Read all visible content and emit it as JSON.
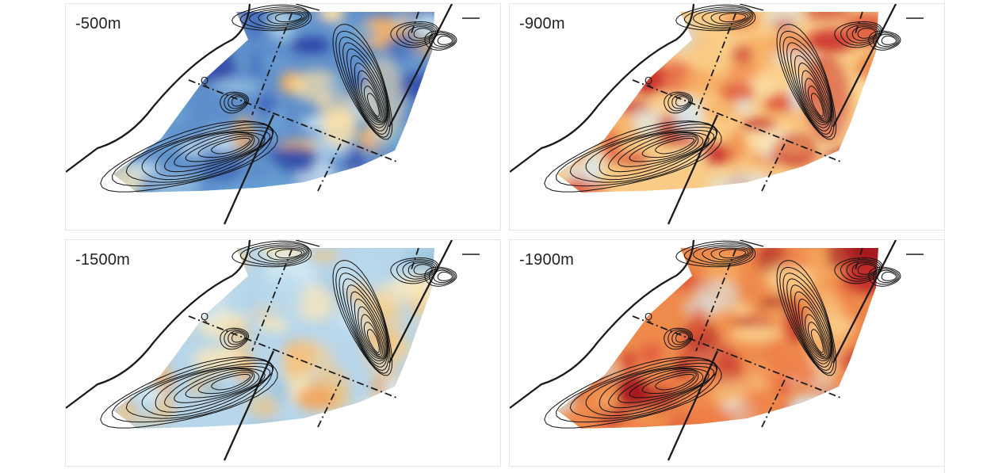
{
  "panels": [
    {
      "label": "-500m",
      "palette": [
        "#2b3fa3",
        "#3a62b8",
        "#6aa4d4",
        "#a9d0e8",
        "#d8ecf5",
        "#ffe2a8",
        "#f7b566"
      ],
      "bg": "#5f8fcb"
    },
    {
      "label": "-900m",
      "palette": [
        "#fde7b4",
        "#fbd08a",
        "#f6ad62",
        "#f08a4b",
        "#e1593a",
        "#c92b2a",
        "#d8ecf5"
      ],
      "bg": "#f9cb86"
    },
    {
      "label": "-1500m",
      "palette": [
        "#8fc0df",
        "#b7d8ec",
        "#d6ebf4",
        "#fde8b8",
        "#fbcf88",
        "#f3a65c",
        "#e8c58e"
      ],
      "bg": "#b8d6ea"
    },
    {
      "label": "-1900m",
      "palette": [
        "#f6a85f",
        "#ef7d45",
        "#e0553b",
        "#c62c2b",
        "#a3131f",
        "#fbd28e",
        "#d8ecf5"
      ],
      "bg": "#ee8a4b"
    }
  ],
  "map_symbols": {
    "fault_label": "Q"
  }
}
